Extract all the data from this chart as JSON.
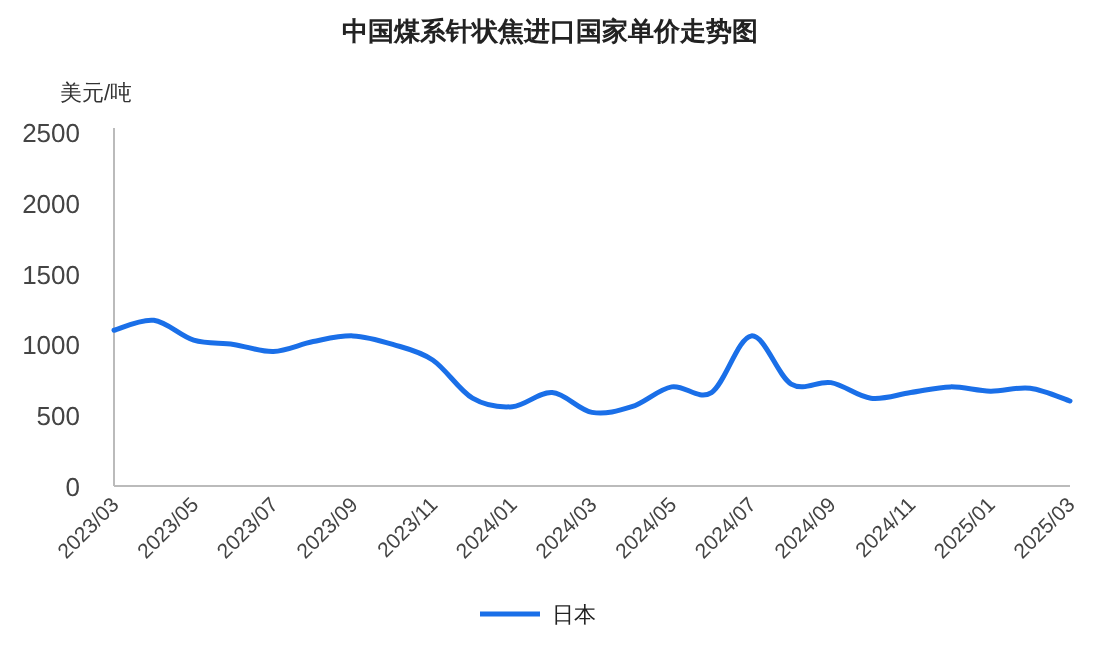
{
  "chart_data": {
    "type": "line",
    "title": "中国煤系针状焦进口国家单价走势图",
    "ylabel": "美元/吨",
    "categories": [
      "2023/03",
      null,
      "2023/05",
      null,
      "2023/07",
      null,
      "2023/09",
      null,
      "2023/11",
      null,
      "2024/01",
      null,
      "2024/03",
      null,
      "2024/05",
      null,
      "2024/07",
      null,
      "2024/09",
      null,
      "2024/11",
      null,
      "2025/01",
      null,
      "2025/03"
    ],
    "series": [
      {
        "name": "日本",
        "color": "#1a6fe8",
        "values": [
          1100,
          1170,
          1030,
          1000,
          950,
          1020,
          1060,
          1000,
          890,
          620,
          560,
          660,
          520,
          560,
          700,
          660,
          1060,
          720,
          730,
          620,
          660,
          700,
          670,
          690,
          600
        ]
      }
    ],
    "ylim": [
      0,
      2500
    ],
    "yticks": [
      0,
      500,
      1000,
      1500,
      2000,
      2500
    ],
    "legend": "bottom",
    "grid": false
  }
}
